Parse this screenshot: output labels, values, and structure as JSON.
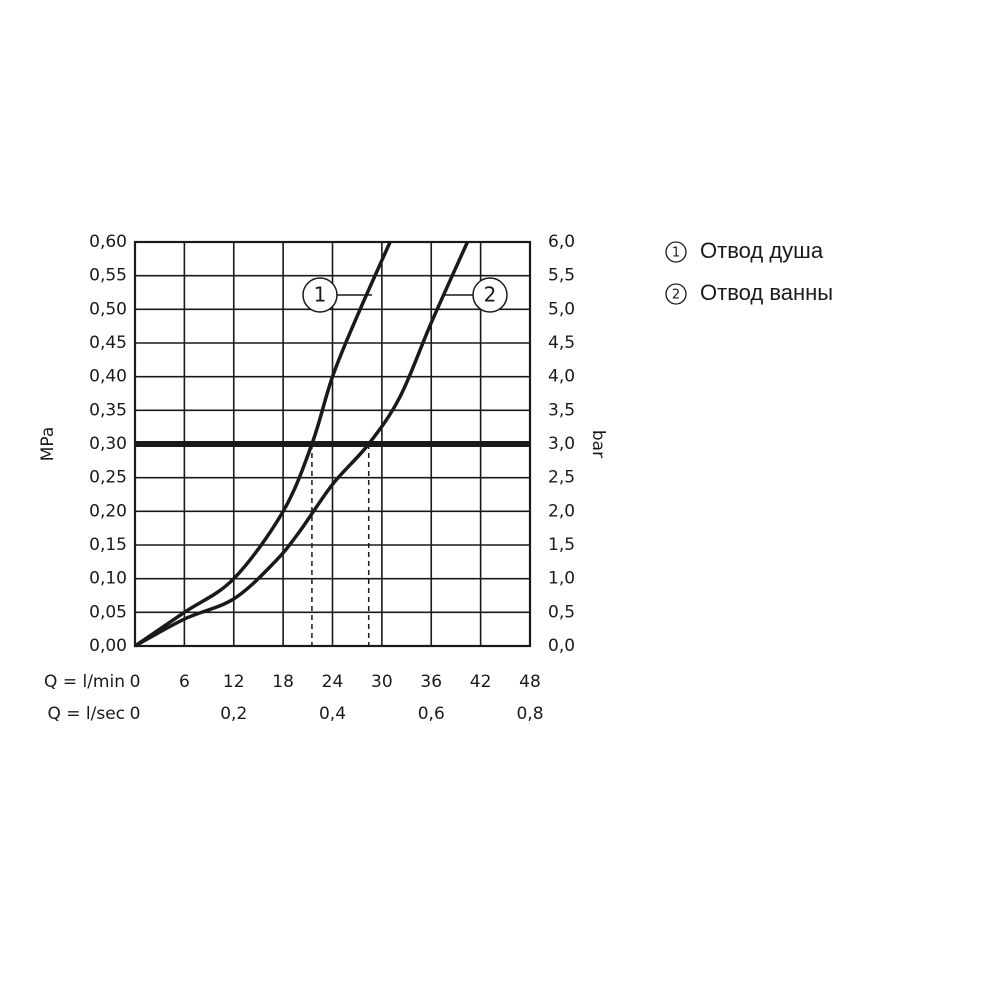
{
  "chart_data": {
    "type": "line",
    "ylabel": "MPa",
    "y2label": "bar",
    "xlabel": "Q = l/min",
    "x2label": "Q = l/sec",
    "xlim": [
      0,
      48
    ],
    "xticks": [
      0,
      6,
      12,
      18,
      24,
      30,
      36,
      42,
      48
    ],
    "x2lim": [
      0,
      0.8
    ],
    "x2ticks": [
      0,
      {
        "value": 0.2,
        "label": "0,2"
      },
      {
        "value": 0.4,
        "label": "0,4"
      },
      {
        "value": 0.6,
        "label": "0,6"
      },
      {
        "value": 0.8,
        "label": "0,8"
      }
    ],
    "ylim": [
      0,
      0.6
    ],
    "yticks": [
      {
        "value": 0,
        "label": "0,00"
      },
      {
        "value": 0.05,
        "label": "0,05"
      },
      {
        "value": 0.1,
        "label": "0,10"
      },
      {
        "value": 0.15,
        "label": "0,15"
      },
      {
        "value": 0.2,
        "label": "0,20"
      },
      {
        "value": 0.25,
        "label": "0,25"
      },
      {
        "value": 0.3,
        "label": "0,30"
      },
      {
        "value": 0.35,
        "label": "0,35"
      },
      {
        "value": 0.4,
        "label": "0,40"
      },
      {
        "value": 0.45,
        "label": "0,45"
      },
      {
        "value": 0.5,
        "label": "0,50"
      },
      {
        "value": 0.55,
        "label": "0,55"
      },
      {
        "value": 0.6,
        "label": "0,60"
      }
    ],
    "y2lim": [
      0,
      6
    ],
    "y2ticks": [
      {
        "value": 0,
        "label": "0,0"
      },
      {
        "value": 0.5,
        "label": "0,5"
      },
      {
        "value": 1,
        "label": "1,0"
      },
      {
        "value": 1.5,
        "label": "1,5"
      },
      {
        "value": 2,
        "label": "2,0"
      },
      {
        "value": 2.5,
        "label": "2,5"
      },
      {
        "value": 3,
        "label": "3,0"
      },
      {
        "value": 3.5,
        "label": "3,5"
      },
      {
        "value": 4,
        "label": "4,0"
      },
      {
        "value": 4.5,
        "label": "4,5"
      },
      {
        "value": 5,
        "label": "5,0"
      },
      {
        "value": 5.5,
        "label": "5,5"
      },
      {
        "value": 6,
        "label": "6,0"
      }
    ],
    "grid": true,
    "reference_line": 0.3,
    "drop_lines": [
      21.5,
      28.4
    ],
    "series": [
      {
        "name": "Отвод душа",
        "label": "1",
        "color": "#1a1a1a",
        "x": [
          0,
          6,
          12,
          18,
          21.5,
          24,
          27,
          31
        ],
        "values": [
          0,
          0.05,
          0.1,
          0.2,
          0.3,
          0.4,
          0.49,
          0.6
        ]
      },
      {
        "name": "Отвод ванны",
        "label": "2",
        "color": "#1a1a1a",
        "x": [
          0,
          6,
          12,
          17,
          20,
          24,
          28.4,
          32.2,
          36,
          40.4
        ],
        "values": [
          0,
          0.04,
          0.07,
          0.125,
          0.17,
          0.24,
          0.3,
          0.37,
          0.48,
          0.6
        ]
      }
    ]
  }
}
